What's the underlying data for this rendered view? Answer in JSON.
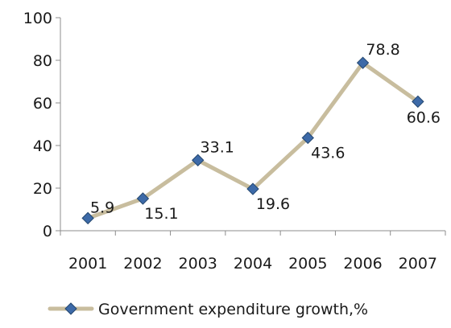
{
  "chart_data": {
    "type": "line",
    "categories": [
      "2001",
      "2002",
      "2003",
      "2004",
      "2005",
      "2006",
      "2007"
    ],
    "series": [
      {
        "name": "Government expenditure growth,%",
        "values": [
          5.9,
          15.1,
          33.1,
          19.6,
          43.6,
          78.8,
          60.6
        ],
        "data_labels": [
          "5.9",
          "15.1",
          "33.1",
          "19.6",
          "43.6",
          "78.8",
          "60.6"
        ],
        "line_color": "#c8bd9e",
        "marker_color": "#3d6aa8",
        "marker_edge_color": "#24476f"
      }
    ],
    "ylim": [
      0,
      100
    ],
    "yticks": [
      "0",
      "20",
      "40",
      "60",
      "80",
      "100"
    ],
    "grid": false,
    "legend": "bottom",
    "axis_color": "#8c8c8c"
  }
}
